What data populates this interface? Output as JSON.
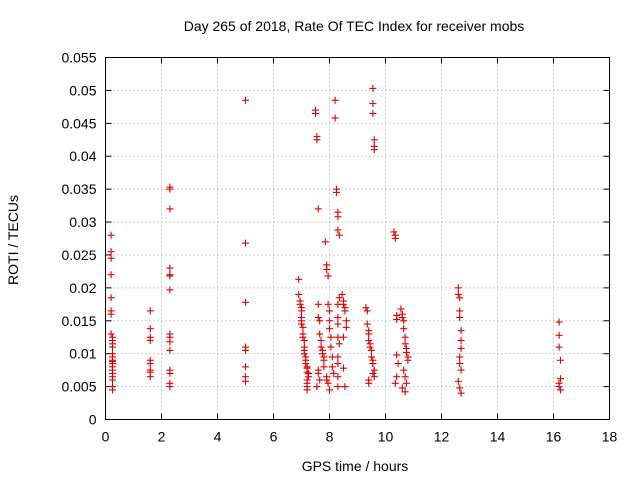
{
  "chart_data": {
    "type": "scatter",
    "title": "Day 265 of 2018, Rate Of TEC Index for receiver mobs",
    "xlabel": "GPS time / hours",
    "ylabel": "ROTI / TECUs",
    "xlim": [
      0,
      18
    ],
    "ylim": [
      0,
      0.055
    ],
    "xticks": [
      0,
      2,
      4,
      6,
      8,
      10,
      12,
      14,
      16,
      18
    ],
    "yticks": [
      0,
      0.005,
      0.01,
      0.015,
      0.02,
      0.025,
      0.03,
      0.035,
      0.04,
      0.045,
      0.05,
      0.055
    ],
    "xtick_labels": [
      "0",
      "2",
      "4",
      "6",
      "8",
      "10",
      "12",
      "14",
      "16",
      "18"
    ],
    "ytick_labels": [
      "0",
      "0.005",
      "0.01",
      "0.015",
      "0.02",
      "0.025",
      "0.03",
      "0.035",
      "0.04",
      "0.045",
      "0.05",
      "0.055"
    ],
    "grid": true,
    "marker": "+",
    "marker_color": "#e00000",
    "series": [
      {
        "name": "ROTI",
        "x": [
          0.2,
          0.2,
          0.2,
          0.2,
          0.2,
          0.2,
          0.2,
          0.2,
          0.25,
          0.25,
          0.25,
          0.25,
          0.25,
          0.25,
          0.25,
          0.25,
          0.25,
          0.25,
          0.25,
          0.25,
          0.25,
          0.25,
          0.25,
          0.25,
          1.6,
          1.6,
          1.6,
          1.6,
          1.6,
          1.6,
          1.6,
          1.6,
          1.6,
          2.3,
          2.3,
          2.3,
          2.3,
          2.3,
          2.3,
          2.3,
          2.3,
          2.3,
          2.3,
          2.3,
          2.3,
          2.3,
          2.3,
          2.3,
          5.0,
          5.0,
          5.0,
          5.0,
          5.0,
          5.0,
          5.0,
          5.0,
          6.9,
          6.9,
          6.95,
          6.95,
          7.0,
          7.0,
          7.0,
          7.0,
          7.0,
          7.05,
          7.05,
          7.05,
          7.1,
          7.1,
          7.1,
          7.1,
          7.15,
          7.15,
          7.15,
          7.2,
          7.2,
          7.2,
          7.25,
          7.25,
          7.2,
          7.2,
          7.2,
          7.2,
          7.5,
          7.5,
          7.55,
          7.55,
          7.6,
          7.6,
          7.6,
          7.65,
          7.65,
          7.7,
          7.7,
          7.75,
          7.75,
          7.8,
          7.8,
          7.8,
          7.6,
          7.6,
          7.65,
          7.55,
          7.85,
          7.9,
          7.9,
          7.95,
          7.95,
          8.0,
          8.0,
          8.0,
          8.05,
          8.05,
          8.1,
          8.1,
          8.15,
          7.9,
          7.9,
          7.95,
          8.0,
          8.2,
          8.2,
          8.25,
          8.25,
          8.3,
          8.3,
          8.3,
          8.35,
          8.35,
          8.3,
          8.3,
          8.3,
          8.3,
          8.35,
          8.3,
          8.3,
          8.3,
          8.3,
          8.45,
          8.5,
          8.5,
          8.55,
          8.55,
          8.6,
          8.6,
          8.5,
          8.5,
          8.55,
          9.3,
          9.35,
          9.35,
          9.4,
          9.4,
          9.4,
          9.45,
          9.45,
          9.5,
          9.5,
          9.55,
          9.55,
          9.6,
          9.6,
          9.4,
          9.4,
          9.55,
          9.55,
          9.55,
          9.6,
          9.6,
          9.6,
          9.55,
          9.55,
          10.3,
          10.35,
          10.35,
          10.4,
          10.4,
          10.4,
          10.45,
          10.4,
          10.35,
          10.55,
          10.6,
          10.6,
          10.65,
          10.65,
          10.7,
          10.7,
          10.75,
          10.75,
          10.8,
          10.8,
          10.65,
          10.7,
          10.75,
          10.6,
          10.7,
          12.6,
          12.6,
          12.65,
          12.65,
          12.65,
          12.7,
          12.7,
          12.7,
          12.65,
          12.65,
          12.7,
          12.6,
          12.65,
          12.7,
          16.2,
          16.2,
          16.2,
          16.25,
          16.25,
          16.2,
          16.2,
          16.25
        ],
        "y": [
          0.028,
          0.0255,
          0.0245,
          0.022,
          0.0185,
          0.0165,
          0.016,
          0.013,
          0.0125,
          0.012,
          0.0115,
          0.011,
          0.01,
          0.0095,
          0.009,
          0.0088,
          0.0085,
          0.008,
          0.0075,
          0.007,
          0.0065,
          0.006,
          0.005,
          0.0045,
          0.0165,
          0.0138,
          0.0125,
          0.012,
          0.009,
          0.0085,
          0.0075,
          0.0072,
          0.0065,
          0.0353,
          0.035,
          0.032,
          0.023,
          0.022,
          0.0218,
          0.0197,
          0.013,
          0.0125,
          0.0118,
          0.0105,
          0.0075,
          0.007,
          0.0055,
          0.005,
          0.0485,
          0.0268,
          0.0178,
          0.011,
          0.0105,
          0.008,
          0.0065,
          0.0058,
          0.0213,
          0.019,
          0.018,
          0.0175,
          0.017,
          0.0165,
          0.0155,
          0.015,
          0.0145,
          0.014,
          0.013,
          0.0125,
          0.012,
          0.011,
          0.0105,
          0.01,
          0.0095,
          0.009,
          0.0085,
          0.008,
          0.0078,
          0.0072,
          0.007,
          0.0065,
          0.006,
          0.0055,
          0.005,
          0.0045,
          0.047,
          0.0465,
          0.043,
          0.0425,
          0.032,
          0.0175,
          0.0155,
          0.015,
          0.013,
          0.012,
          0.011,
          0.0105,
          0.01,
          0.0095,
          0.009,
          0.008,
          0.0075,
          0.007,
          0.006,
          0.005,
          0.027,
          0.0235,
          0.0228,
          0.0218,
          0.0175,
          0.0165,
          0.015,
          0.0138,
          0.0125,
          0.011,
          0.0095,
          0.008,
          0.007,
          0.0065,
          0.006,
          0.0055,
          0.0045,
          0.0485,
          0.0458,
          0.035,
          0.0345,
          0.0315,
          0.0308,
          0.0288,
          0.028,
          0.0185,
          0.0175,
          0.0155,
          0.0145,
          0.0125,
          0.0115,
          0.0095,
          0.0085,
          0.0065,
          0.005,
          0.019,
          0.018,
          0.0175,
          0.017,
          0.0165,
          0.015,
          0.014,
          0.0125,
          0.0078,
          0.005,
          0.017,
          0.0165,
          0.0145,
          0.0135,
          0.013,
          0.012,
          0.0115,
          0.011,
          0.0105,
          0.0095,
          0.009,
          0.0085,
          0.0075,
          0.0065,
          0.006,
          0.0055,
          0.0503,
          0.048,
          0.0465,
          0.0425,
          0.0415,
          0.041,
          0.0085,
          0.007,
          0.0285,
          0.028,
          0.0275,
          0.0158,
          0.0152,
          0.0098,
          0.0085,
          0.0065,
          0.0055,
          0.0168,
          0.016,
          0.0155,
          0.015,
          0.0138,
          0.0125,
          0.0115,
          0.0108,
          0.0102,
          0.0095,
          0.009,
          0.0075,
          0.0065,
          0.0055,
          0.0048,
          0.0042,
          0.02,
          0.019,
          0.0185,
          0.0165,
          0.0155,
          0.0135,
          0.012,
          0.0108,
          0.0095,
          0.0085,
          0.0075,
          0.0058,
          0.0048,
          0.004,
          0.0148,
          0.0128,
          0.011,
          0.009,
          0.0062,
          0.0055,
          0.005,
          0.0045
        ]
      }
    ]
  }
}
